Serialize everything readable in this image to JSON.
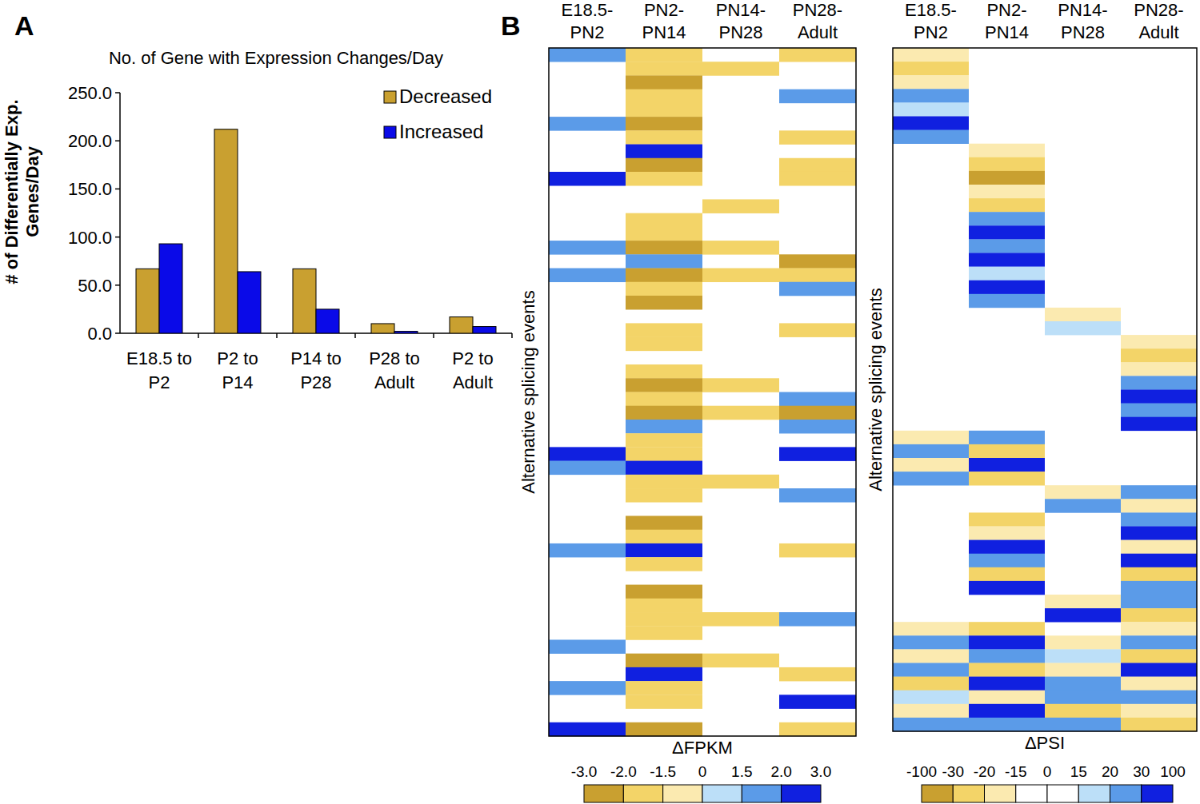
{
  "chart_data": [
    {
      "type": "bar",
      "panel_label": "A",
      "title": "No. of Gene with Expression Changes/Day",
      "y_label": [
        "# of Differentially Exp.",
        "Genes/Day"
      ],
      "categories": [
        "E18.5 to P2",
        "P2 to P14",
        "P14 to P28",
        "P28 to Adult",
        "P2 to Adult"
      ],
      "series": [
        {
          "name": "Decreased",
          "color": "#c9a030",
          "values": [
            67,
            212,
            67,
            10,
            17
          ]
        },
        {
          "name": "Increased",
          "color": "#0a0ae8",
          "values": [
            93,
            64,
            25,
            2,
            7
          ]
        }
      ],
      "ylim": [
        0,
        250
      ],
      "yticks": [
        {
          "value": 0,
          "label": "0.0"
        },
        {
          "value": 50,
          "label": "50.0"
        },
        {
          "value": 100,
          "label": "100.0"
        },
        {
          "value": 150,
          "label": "150.0"
        },
        {
          "value": 200,
          "label": "200.0"
        },
        {
          "value": 250,
          "label": "250.0"
        }
      ],
      "legend": "top-right",
      "grid": false
    },
    {
      "type": "heatmap",
      "panel_label": "B",
      "x": [
        "E18.5-PN2",
        "PN2-PN14",
        "PN14-PN28",
        "PN28-Adult"
      ],
      "y_label": "Alternative splicing events",
      "cells": [
        [
          1.7,
          -1.7,
          null,
          -1.7
        ],
        [
          null,
          -1.7,
          -1.7,
          null
        ],
        [
          null,
          -2.2,
          null,
          null
        ],
        [
          null,
          -1.7,
          null,
          1.7
        ],
        [
          null,
          -1.7,
          null,
          null
        ],
        [
          1.7,
          -2.2,
          null,
          null
        ],
        [
          null,
          -1.7,
          null,
          -1.7
        ],
        [
          null,
          2.5,
          null,
          null
        ],
        [
          null,
          -2.2,
          null,
          -1.7
        ],
        [
          2.5,
          -1.7,
          null,
          -1.7
        ],
        [
          null,
          null,
          null,
          null
        ],
        [
          null,
          null,
          -1.7,
          null
        ],
        [
          null,
          -1.7,
          null,
          null
        ],
        [
          null,
          -1.7,
          null,
          null
        ],
        [
          1.7,
          -2.2,
          -1.7,
          null
        ],
        [
          null,
          1.7,
          null,
          -2.5
        ],
        [
          1.7,
          -2.5,
          -1.7,
          -1.7
        ],
        [
          null,
          -1.7,
          null,
          1.7
        ],
        [
          null,
          -2.2,
          null,
          null
        ],
        [
          null,
          null,
          null,
          null
        ],
        [
          null,
          -1.7,
          null,
          -1.7
        ],
        [
          null,
          -1.7,
          null,
          null
        ],
        [
          null,
          null,
          null,
          null
        ],
        [
          null,
          -1.7,
          null,
          null
        ],
        [
          null,
          -2.2,
          -1.7,
          null
        ],
        [
          null,
          -1.7,
          null,
          1.7
        ],
        [
          null,
          -2.5,
          -1.7,
          -2.5
        ],
        [
          null,
          1.7,
          null,
          1.7
        ],
        [
          null,
          -1.7,
          null,
          null
        ],
        [
          2.5,
          -1.7,
          null,
          2.5
        ],
        [
          1.7,
          2.5,
          null,
          null
        ],
        [
          null,
          -1.7,
          -1.7,
          null
        ],
        [
          null,
          -1.7,
          null,
          1.7
        ],
        [
          null,
          null,
          null,
          null
        ],
        [
          null,
          -2.2,
          null,
          null
        ],
        [
          null,
          -1.7,
          null,
          null
        ],
        [
          1.7,
          2.5,
          null,
          -1.7
        ],
        [
          null,
          -1.7,
          null,
          null
        ],
        [
          null,
          null,
          null,
          null
        ],
        [
          null,
          -2.2,
          null,
          null
        ],
        [
          null,
          -1.7,
          null,
          null
        ],
        [
          null,
          -1.7,
          -1.7,
          1.7
        ],
        [
          null,
          -1.7,
          null,
          null
        ],
        [
          1.7,
          null,
          null,
          null
        ],
        [
          null,
          -2.2,
          -1.7,
          null
        ],
        [
          null,
          2.5,
          null,
          -1.7
        ],
        [
          1.7,
          -1.7,
          null,
          null
        ],
        [
          null,
          -1.7,
          null,
          2.5
        ],
        [
          null,
          null,
          null,
          null
        ],
        [
          2.5,
          -2.2,
          null,
          -1.7
        ]
      ],
      "colorbar": {
        "label": "ΔFPKM",
        "ticks": [
          {
            "value": -3,
            "label": "-3.0"
          },
          {
            "value": -2,
            "label": "-2.0"
          },
          {
            "value": -1.5,
            "label": "-1.5"
          },
          0,
          {
            "value": 1.5,
            "label": "1.5"
          },
          {
            "value": 2,
            "label": "2.0"
          },
          {
            "value": 3,
            "label": "3.0"
          }
        ],
        "colors": [
          "#c9a030",
          "#f3d468",
          "#fbeab0",
          "#bcdff8",
          "#5b9be8",
          "#1020e0"
        ]
      }
    },
    {
      "type": "heatmap",
      "x": [
        "E18.5-PN2",
        "PN2-PN14",
        "PN14-PN28",
        "PN28-Adult"
      ],
      "y_label": "Alternative splicing events",
      "cells": [
        [
          -20,
          null,
          null,
          null
        ],
        [
          -25,
          null,
          null,
          null
        ],
        [
          -18,
          null,
          null,
          null
        ],
        [
          25,
          null,
          null,
          null
        ],
        [
          18,
          null,
          null,
          null
        ],
        [
          35,
          null,
          null,
          null
        ],
        [
          22,
          null,
          null,
          null
        ],
        [
          null,
          -18,
          null,
          null
        ],
        [
          null,
          -25,
          null,
          null
        ],
        [
          null,
          -35,
          null,
          null
        ],
        [
          null,
          -20,
          null,
          null
        ],
        [
          null,
          -22,
          null,
          null
        ],
        [
          null,
          25,
          null,
          null
        ],
        [
          null,
          35,
          null,
          null
        ],
        [
          null,
          22,
          null,
          null
        ],
        [
          null,
          40,
          null,
          null
        ],
        [
          null,
          18,
          null,
          null
        ],
        [
          null,
          30,
          null,
          null
        ],
        [
          null,
          25,
          null,
          null
        ],
        [
          null,
          null,
          -18,
          null
        ],
        [
          null,
          null,
          17,
          null
        ],
        [
          null,
          null,
          null,
          -18
        ],
        [
          null,
          null,
          null,
          -25
        ],
        [
          null,
          null,
          null,
          -20
        ],
        [
          null,
          null,
          null,
          22
        ],
        [
          null,
          null,
          null,
          35
        ],
        [
          null,
          null,
          null,
          25
        ],
        [
          null,
          null,
          null,
          40
        ],
        [
          -20,
          25,
          null,
          null
        ],
        [
          22,
          -25,
          null,
          null
        ],
        [
          -18,
          35,
          null,
          null
        ],
        [
          25,
          -22,
          null,
          null
        ],
        [
          null,
          null,
          -18,
          22
        ],
        [
          null,
          null,
          25,
          -20
        ],
        [
          null,
          -22,
          null,
          25
        ],
        [
          null,
          -18,
          null,
          35
        ],
        [
          null,
          30,
          null,
          -20
        ],
        [
          null,
          22,
          null,
          40
        ],
        [
          null,
          -25,
          null,
          -22
        ],
        [
          null,
          35,
          null,
          20
        ],
        [
          null,
          null,
          -20,
          25
        ],
        [
          null,
          null,
          35,
          -25
        ],
        [
          -20,
          -25,
          null,
          -18
        ],
        [
          25,
          40,
          -18,
          22
        ],
        [
          -18,
          22,
          18,
          -25
        ],
        [
          22,
          -22,
          -20,
          30
        ],
        [
          -25,
          35,
          22,
          -20
        ],
        [
          18,
          -18,
          25,
          22
        ],
        [
          -20,
          40,
          -22,
          -18
        ],
        [
          22,
          25,
          20,
          -25
        ]
      ],
      "colorbar": {
        "label": "ΔPSI",
        "ticks": [
          -100,
          -30,
          -20,
          -15,
          0,
          15,
          20,
          30,
          100
        ],
        "colors": [
          "#c9a030",
          "#f3d468",
          "#fbeab0",
          "#ffffff",
          "#ffffff",
          "#bcdff8",
          "#5b9be8",
          "#1020e0"
        ]
      }
    }
  ]
}
